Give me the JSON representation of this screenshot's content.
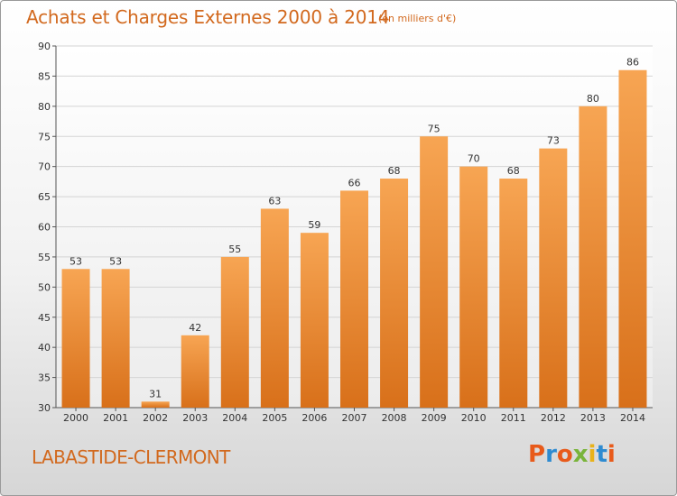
{
  "header": {
    "title": "Achats et Charges Externes 2000 à 2014",
    "subtitle": "(en milliers d'€)"
  },
  "footer": {
    "commune": "LABASTIDE-CLERMONT",
    "brand": "Proxiti"
  },
  "colors": {
    "accent": "#d2691e",
    "bar_top": "#f7a553",
    "bar_bottom": "#d8701a",
    "brand_letters": [
      "#e85a1a",
      "#2e8bd1",
      "#e85a1a",
      "#79b43a",
      "#e8b21a",
      "#2e8bd1",
      "#e85a1a"
    ]
  },
  "chart_data": {
    "type": "bar",
    "title": "Achats et Charges Externes 2000 à 2014",
    "subtitle": "(en milliers d'€)",
    "categories": [
      "2000",
      "2001",
      "2002",
      "2003",
      "2004",
      "2005",
      "2006",
      "2007",
      "2008",
      "2009",
      "2010",
      "2011",
      "2012",
      "2013",
      "2014"
    ],
    "values": [
      53,
      53,
      31,
      42,
      55,
      63,
      59,
      66,
      68,
      75,
      70,
      68,
      73,
      80,
      86
    ],
    "ylim": [
      30,
      90
    ],
    "yticks": [
      30,
      35,
      40,
      45,
      50,
      55,
      60,
      65,
      70,
      75,
      80,
      85,
      90
    ],
    "grid": true,
    "xlabel": "",
    "ylabel": ""
  }
}
